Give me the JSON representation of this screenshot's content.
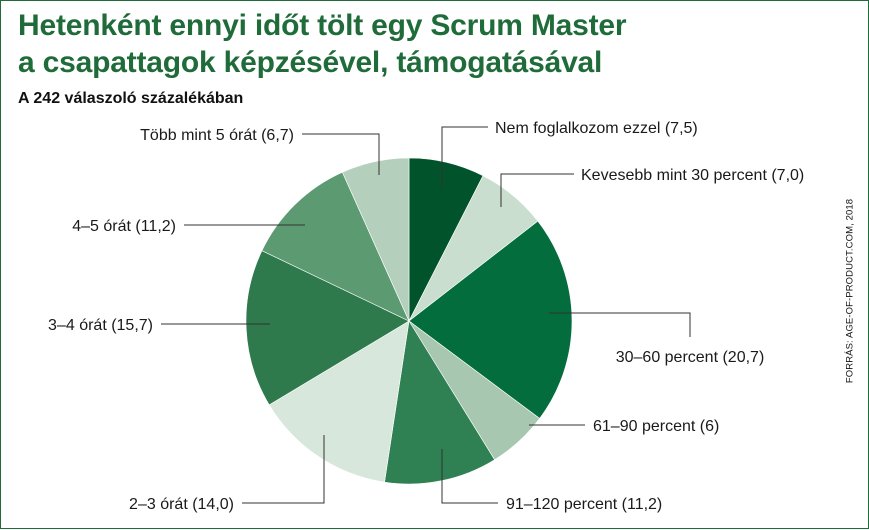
{
  "title_line1": "Hetenként ennyi időt tölt egy Scrum Master",
  "title_line2": "a csapattagok képzésével, támogatásával",
  "subtitle": "A 242 válaszoló százalékában",
  "source": "FORRÁS: AGE-OF-PRODUCT.COM, 2018",
  "chart_data": {
    "type": "pie",
    "start": "12 o'clock, clockwise",
    "slices": [
      {
        "label": "Nem foglalkozom ezzel (7,5)",
        "value": 7.5,
        "color": "#00532a"
      },
      {
        "label": "Kevesebb mint 30 percent (7,0)",
        "value": 7.0,
        "color": "#c9decf"
      },
      {
        "label": "30–60 percent (20,7)",
        "value": 20.7,
        "color": "#036d3d"
      },
      {
        "label": "61–90 percent (6)",
        "value": 6.0,
        "color": "#a8c7b1"
      },
      {
        "label": "91–120 percent (11,2)",
        "value": 11.2,
        "color": "#2f8053"
      },
      {
        "label": "2–3 órát (14,0)",
        "value": 14.0,
        "color": "#d8e7db"
      },
      {
        "label": "3–4 órát (15,7)",
        "value": 15.7,
        "color": "#2e7a4d"
      },
      {
        "label": "4–5 órát (11,2)",
        "value": 11.2,
        "color": "#5c9a72"
      },
      {
        "label": "Több mint 5 órát (6,7)",
        "value": 6.7,
        "color": "#b4cfbb"
      }
    ]
  }
}
